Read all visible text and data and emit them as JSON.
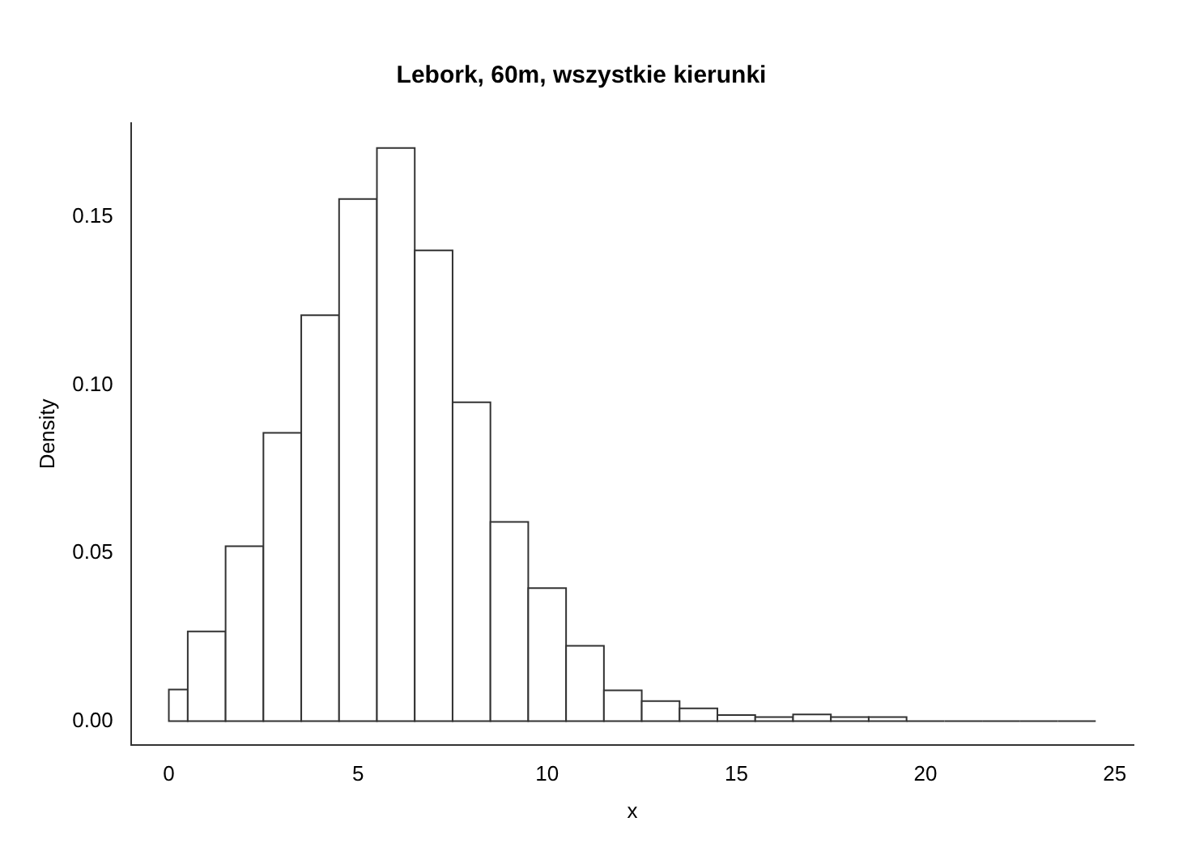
{
  "chart_data": {
    "type": "histogram",
    "title": "Lebork, 60m, wszystkie kierunki",
    "xlabel": "x",
    "ylabel": "Density",
    "bins": [
      0,
      0.5,
      1.5,
      2.5,
      3.5,
      4.5,
      5.5,
      6.5,
      7.5,
      8.5,
      9.5,
      10.5,
      11.5,
      12.5,
      13.5,
      14.5,
      15.5,
      16.5,
      17.5,
      18.5,
      19.5,
      20.5,
      21.5,
      22.5,
      23.5,
      24.5
    ],
    "values": [
      0.0094,
      0.0267,
      0.0521,
      0.0858,
      0.1208,
      0.1554,
      0.1706,
      0.1401,
      0.0949,
      0.0593,
      0.0396,
      0.0224,
      0.0092,
      0.006,
      0.0038,
      0.0018,
      0.0012,
      0.002,
      0.0012,
      0.0012,
      0,
      0,
      0,
      0,
      0
    ],
    "color": "#333333",
    "xlim": [
      -1,
      25.5
    ],
    "ylim": [
      -0.007,
      0.178
    ],
    "xticks": [
      0,
      5,
      10,
      15,
      20,
      25
    ],
    "yticks": [
      {
        "value": 0,
        "label": "0.00"
      },
      {
        "value": 0.05,
        "label": "0.05"
      },
      {
        "value": 0.1,
        "label": "0.10"
      },
      {
        "value": 0.15,
        "label": "0.15"
      }
    ],
    "grid": false,
    "legend": false
  }
}
